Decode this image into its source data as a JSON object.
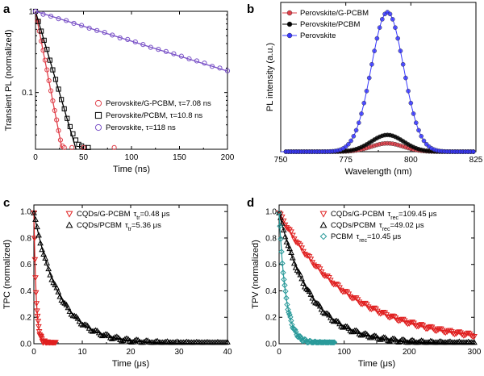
{
  "chart_data": [
    {
      "panel": "a",
      "type": "scatter",
      "title": "",
      "xlabel": "Time (ns)",
      "ylabel": "Transient PL (normalized)",
      "xlim": [
        0,
        200
      ],
      "ylim": [
        0.02,
        1
      ],
      "yscale": "log",
      "xticks": [
        "0",
        "50",
        "100",
        "150",
        "200"
      ],
      "yticks": [
        "1",
        "0.1"
      ],
      "legend_position": "bottom-right",
      "series": [
        {
          "name": "Perovskite/G-PCBM, τ=7.08 ns",
          "marker": "circle",
          "color": "#e0404a",
          "fit_tau": 7.08,
          "x": [
            0,
            2,
            4,
            6,
            8,
            10,
            12,
            14,
            16,
            18,
            20,
            22,
            24,
            26,
            28,
            30
          ],
          "y": [
            1,
            0.76,
            0.57,
            0.43,
            0.33,
            0.25,
            0.19,
            0.14,
            0.105,
            0.079,
            0.06,
            0.046,
            0.034,
            0.026,
            0.022,
            0.021
          ]
        },
        {
          "name": "Perovskite/PCBM, τ=10.8 ns",
          "marker": "square",
          "color": "#000000",
          "fit_tau": 10.8,
          "x": [
            0,
            3,
            6,
            9,
            12,
            15,
            18,
            21,
            24,
            27,
            30,
            33,
            36,
            39,
            42,
            45,
            48,
            51,
            55
          ],
          "y": [
            1,
            0.75,
            0.57,
            0.44,
            0.34,
            0.25,
            0.19,
            0.145,
            0.11,
            0.082,
            0.063,
            0.048,
            0.038,
            0.031,
            0.026,
            0.023,
            0.022,
            0.021,
            0.021
          ]
        },
        {
          "name": "Perovskite, τ=118 ns",
          "marker": "circle",
          "color": "#7a52c7",
          "fit_tau": 118,
          "x": [
            0,
            8,
            16,
            24,
            32,
            40,
            48,
            56,
            64,
            72,
            80,
            88,
            96,
            104,
            112,
            120,
            128,
            136,
            144,
            152,
            160,
            168,
            176,
            184,
            192,
            200
          ],
          "y": [
            1,
            0.92,
            0.87,
            0.81,
            0.77,
            0.71,
            0.67,
            0.62,
            0.58,
            0.55,
            0.51,
            0.47,
            0.45,
            0.42,
            0.39,
            0.36,
            0.34,
            0.32,
            0.3,
            0.28,
            0.26,
            0.245,
            0.23,
            0.21,
            0.2,
            0.185
          ]
        },
        {
          "name": "",
          "marker": "circle",
          "color": "#e0404a",
          "fit_tau": null,
          "x": [
            38,
            50,
            82
          ],
          "y": [
            0.021,
            0.021,
            0.021
          ]
        }
      ]
    },
    {
      "panel": "b",
      "type": "line",
      "title": "",
      "xlabel": "Wavelength (nm)",
      "ylabel": "PL intensity (a.u.)",
      "xlim": [
        750,
        825
      ],
      "ylim": [
        0,
        1.07
      ],
      "xticks": [
        "750",
        "775",
        "800",
        "825"
      ],
      "yticks": [],
      "legend_position": "top-left",
      "series": [
        {
          "name": "Perovskite/G-PCBM",
          "marker": "circle",
          "color": "#e0404a",
          "peak": 791,
          "amplitude": 0.06,
          "width": 6.2
        },
        {
          "name": "Perovskite/PCBM",
          "marker": "circle",
          "color": "#000000",
          "peak": 791,
          "amplitude": 0.12,
          "width": 6.2
        },
        {
          "name": "Perovskite",
          "marker": "circle",
          "color": "#3a3aff",
          "peak": 791,
          "amplitude": 1.0,
          "width": 6.2
        }
      ]
    },
    {
      "panel": "c",
      "type": "scatter",
      "title": "",
      "xlabel": "Time (μs)",
      "ylabel": "TPC (normalized)",
      "xlim": [
        0,
        40
      ],
      "ylim": [
        0,
        1.05
      ],
      "xticks": [
        "0",
        "10",
        "20",
        "30",
        "40"
      ],
      "yticks": [
        "0.0",
        "0.2",
        "0.4",
        "0.6",
        "0.8",
        "1.0"
      ],
      "legend_position": "top-right",
      "series": [
        {
          "name": "CQDs/G-PCBM",
          "tau_label": "0.48 μs",
          "marker": "triangle-down",
          "color": "#e02020",
          "tau": 0.48,
          "xmax": 4.5,
          "n": 42
        },
        {
          "name": "CQDs/PCBM",
          "tau_label": "5.36 μs",
          "marker": "triangle-up",
          "color": "#000000",
          "tau": 5.36,
          "xmax": 40,
          "n": 120
        }
      ]
    },
    {
      "panel": "d",
      "type": "scatter",
      "title": "",
      "xlabel": "Time (μs)",
      "ylabel": "TPV (normalized)",
      "xlim": [
        0,
        300
      ],
      "ylim": [
        0,
        1.05
      ],
      "xticks": [
        "0",
        "100",
        "200",
        "300"
      ],
      "yticks": [
        "0.0",
        "0.2",
        "0.4",
        "0.6",
        "0.8",
        "1.0"
      ],
      "legend_position": "top-right",
      "series": [
        {
          "name": "CQDs/G-PCBM",
          "tau_label": "109.45 μs",
          "marker": "triangle-down",
          "color": "#e02020",
          "tau": 109.45,
          "xmax": 300,
          "n": 130
        },
        {
          "name": "CQDs/PCBM",
          "tau_label": "49.02 μs",
          "marker": "triangle-up",
          "color": "#000000",
          "tau": 49.02,
          "xmax": 300,
          "n": 130
        },
        {
          "name": "PCBM",
          "tau_label": "10.45 μs",
          "marker": "diamond",
          "color": "#2a9a9a",
          "tau": 10.45,
          "xmax": 85,
          "n": 70
        }
      ]
    }
  ],
  "labels": {
    "panel_a": "a",
    "panel_b": "b",
    "panel_c": "c",
    "panel_d": "d",
    "tau_symbol": "τ",
    "tau_tr_sub": "tr",
    "tau_rec_sub": "rec",
    "equals": "="
  }
}
